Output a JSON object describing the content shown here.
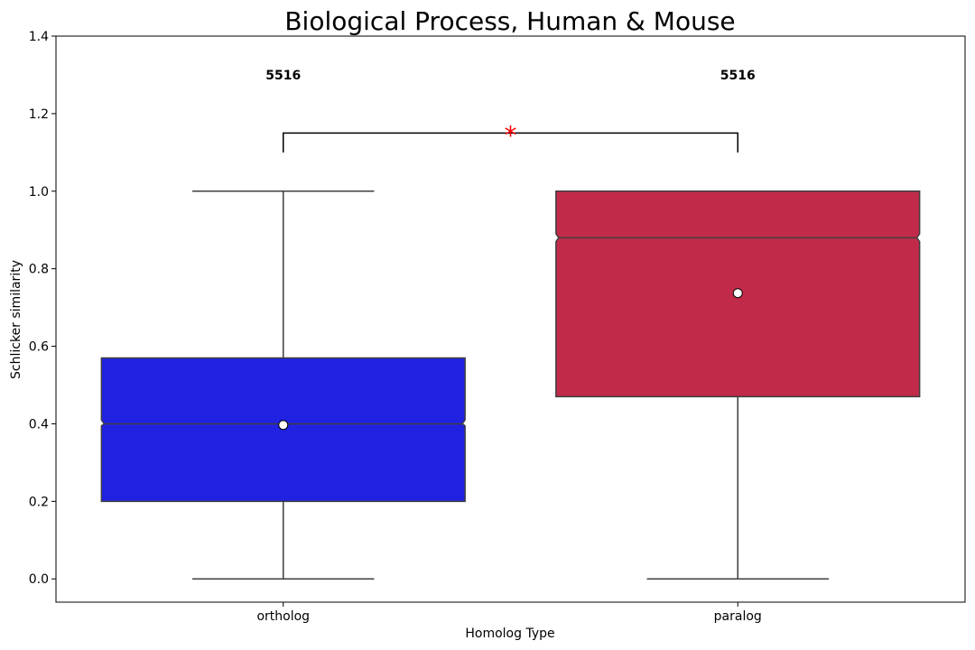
{
  "chart_data": {
    "type": "boxplot",
    "title": "Biological Process, Human & Mouse",
    "xlabel": "Homolog Type",
    "ylabel": "Schlicker similarity",
    "ylim": [
      -0.06,
      1.4
    ],
    "yticks": [
      0.0,
      0.2,
      0.4,
      0.6,
      0.8,
      1.0,
      1.2,
      1.4
    ],
    "ytick_labels": [
      "0.0",
      "0.2",
      "0.4",
      "0.6",
      "0.8",
      "1.0",
      "1.2",
      "1.4"
    ],
    "grid": false,
    "notched": true,
    "categories": [
      "ortholog",
      "paralog"
    ],
    "boxes": [
      {
        "category": "ortholog",
        "color": "#2022e2",
        "whisker_low": 0.0,
        "q1": 0.2,
        "median": 0.4,
        "q3": 0.57,
        "whisker_high": 1.0,
        "notch_low": 0.395,
        "notch_high": 0.41,
        "mean": 0.397,
        "count_label": "5516"
      },
      {
        "category": "paralog",
        "color": "#c22a4a",
        "whisker_low": 0.0,
        "q1": 0.47,
        "median": 0.88,
        "q3": 1.0,
        "whisker_high": 1.0,
        "notch_low": 0.87,
        "notch_high": 0.89,
        "mean": 0.737,
        "count_label": "5516"
      }
    ],
    "annotations": {
      "count_label_y": 1.3,
      "significance": {
        "from": "ortholog",
        "to": "paralog",
        "bracket_low": 1.1,
        "bracket_high": 1.15,
        "label": "*",
        "color": "#ff0000"
      }
    }
  }
}
